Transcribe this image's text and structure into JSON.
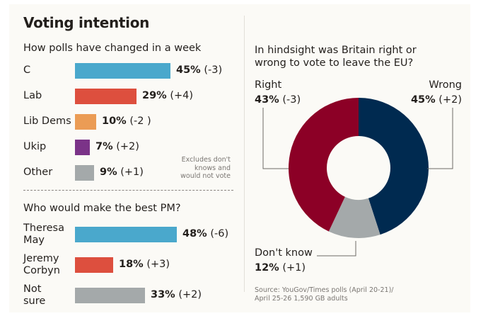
{
  "title": "Voting intention",
  "chart_data": [
    {
      "type": "bar",
      "orientation": "horizontal",
      "title": "How polls have changed in a week",
      "categories": [
        "C",
        "Lab",
        "Lib Dems",
        "Ukip",
        "Other"
      ],
      "values": [
        45,
        29,
        10,
        7,
        9
      ],
      "value_labels": [
        "45%",
        "29%",
        "10%",
        "7%",
        "9%"
      ],
      "changes": [
        "(-3)",
        "(+4)",
        "(-2 )",
        "(+2)",
        "(+1)"
      ],
      "colors": [
        "#4aa8cc",
        "#dd4f3e",
        "#eb9c55",
        "#7b3388",
        "#a4a9aa"
      ],
      "unit": "%",
      "note": [
        "Excludes don't",
        "knows and",
        "would not vote"
      ]
    },
    {
      "type": "bar",
      "orientation": "horizontal",
      "title": "Who would make the best PM?",
      "categories": [
        [
          "Theresa",
          "May"
        ],
        [
          "Jeremy",
          "Corbyn"
        ],
        [
          "Not",
          "sure"
        ]
      ],
      "values": [
        48,
        18,
        33
      ],
      "value_labels": [
        "48%",
        "18%",
        "33%"
      ],
      "changes": [
        "(-6)",
        "(+3)",
        "(+2)"
      ],
      "colors": [
        "#4aa8cc",
        "#dd4f3e",
        "#a4a9aa"
      ],
      "unit": "%"
    },
    {
      "type": "pie",
      "variant": "donut",
      "title": [
        "In hindsight was Britain right or",
        "wrong to vote to leave the EU?"
      ],
      "slices": [
        {
          "label": "Wrong",
          "value": 45,
          "value_label": "45%",
          "change": "(+2)",
          "color": "#002a50"
        },
        {
          "label": "Don't know",
          "value": 12,
          "value_label": "12%",
          "change": "(+1)",
          "color": "#a4a9aa"
        },
        {
          "label": "Right",
          "value": 43,
          "value_label": "43%",
          "change": "(-3)",
          "color": "#8c0026"
        }
      ],
      "start": "top, clockwise"
    }
  ],
  "source": [
    "Source: YouGov/Times polls (April 20-21)/",
    "April 25-26 1,590 GB adults"
  ]
}
